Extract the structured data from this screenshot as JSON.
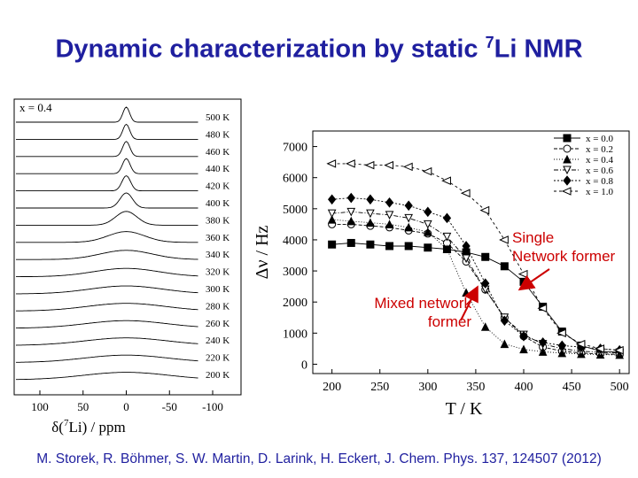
{
  "slide": {
    "title_main": "Dynamic characterization by static ",
    "title_sup": "7",
    "title_end": "Li NMR",
    "citation": "M. Storek, R. Böhmer, S. W. Martin, D. Larink, H. Eckert, J. Chem. Phys. 137, 124507 (2012)"
  },
  "annotations": {
    "single_line1": "Single",
    "single_line2": "Network former",
    "mixed_line1": "Mixed network",
    "mixed_line2": "former",
    "color": "#cc0000"
  },
  "chart_data": [
    {
      "type": "line",
      "composition_label": "x = 0.4",
      "xlabel_prefix": "δ(",
      "xlabel_sup": "7",
      "xlabel_suffix": "Li) / ppm",
      "xlim": [
        100,
        -100
      ],
      "x_ticks": [
        "100",
        "50",
        "0",
        "-50",
        "-100"
      ],
      "temperatures": [
        "500 K",
        "480 K",
        "460 K",
        "440 K",
        "420 K",
        "400 K",
        "380 K",
        "360 K",
        "340 K",
        "320 K",
        "300 K",
        "280 K",
        "260 K",
        "240 K",
        "220 K",
        "200 K"
      ],
      "linewidth_hz": [
        350,
        360,
        380,
        400,
        450,
        650,
        1100,
        1900,
        2700,
        3400,
        3800,
        4050,
        4200,
        4300,
        4350,
        4400
      ],
      "color": "#000000"
    },
    {
      "type": "line",
      "xlabel": "T / K",
      "ylabel": "Δν / Hz",
      "xlim": [
        180,
        510
      ],
      "ylim": [
        -300,
        7500
      ],
      "x_ticks": [
        200,
        250,
        300,
        350,
        400,
        450,
        500
      ],
      "y_ticks": [
        0,
        1000,
        2000,
        3000,
        4000,
        5000,
        6000,
        7000
      ],
      "legend_position": "top-right",
      "series": [
        {
          "name": "x = 0.0",
          "marker": "square-filled",
          "x": [
            200,
            220,
            240,
            260,
            280,
            300,
            320,
            340,
            360,
            380,
            400,
            420,
            440,
            460,
            480,
            500
          ],
          "y": [
            3850,
            3900,
            3850,
            3800,
            3800,
            3750,
            3700,
            3600,
            3450,
            3150,
            2650,
            1850,
            1050,
            600,
            420,
            380
          ]
        },
        {
          "name": "x = 0.2",
          "marker": "circle-open",
          "x": [
            200,
            220,
            240,
            260,
            280,
            300,
            320,
            340,
            360,
            380,
            400,
            420,
            440,
            460,
            480,
            500
          ],
          "y": [
            4500,
            4500,
            4450,
            4400,
            4300,
            4200,
            3900,
            3300,
            2400,
            1500,
            900,
            550,
            420,
            360,
            330,
            320
          ]
        },
        {
          "name": "x = 0.4",
          "marker": "triangle-filled",
          "x": [
            200,
            220,
            240,
            260,
            280,
            300,
            320,
            340,
            360,
            380,
            400,
            420,
            440,
            460,
            480,
            500
          ],
          "y": [
            4650,
            4600,
            4550,
            4500,
            4400,
            4250,
            3700,
            2300,
            1200,
            650,
            480,
            400,
            360,
            330,
            310,
            300
          ]
        },
        {
          "name": "x = 0.6",
          "marker": "triangle-down-open",
          "x": [
            200,
            220,
            240,
            260,
            280,
            300,
            320,
            340,
            360,
            380,
            400,
            420,
            440,
            460,
            480,
            500
          ],
          "y": [
            4850,
            4900,
            4850,
            4800,
            4700,
            4500,
            4100,
            3400,
            2400,
            1500,
            950,
            650,
            500,
            420,
            380,
            360
          ]
        },
        {
          "name": "x = 0.8",
          "marker": "diamond-filled",
          "x": [
            200,
            220,
            240,
            260,
            280,
            300,
            320,
            340,
            360,
            380,
            400,
            420,
            440,
            460,
            480,
            500
          ],
          "y": [
            5300,
            5350,
            5300,
            5200,
            5100,
            4900,
            4700,
            3800,
            2600,
            1400,
            900,
            700,
            600,
            550,
            500,
            450
          ]
        },
        {
          "name": "x = 1.0",
          "marker": "triangle-left-open",
          "x": [
            200,
            220,
            240,
            260,
            280,
            300,
            320,
            340,
            360,
            380,
            400,
            420,
            440,
            460,
            480,
            500
          ],
          "y": [
            6450,
            6450,
            6400,
            6400,
            6350,
            6200,
            5900,
            5500,
            4950,
            4000,
            2900,
            1800,
            1000,
            650,
            500,
            450
          ]
        }
      ]
    }
  ]
}
